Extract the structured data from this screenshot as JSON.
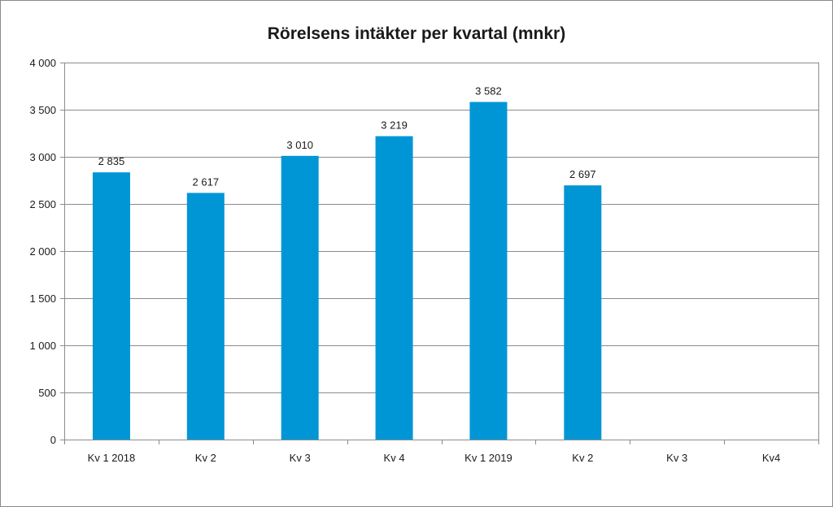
{
  "chart_data": {
    "type": "bar",
    "title": "Rörelsens intäkter per kvartal (mnkr)",
    "categories": [
      "Kv 1 2018",
      "Kv 2",
      "Kv 3",
      "Kv 4",
      "Kv 1 2019",
      "Kv 2",
      "Kv 3",
      "Kv4"
    ],
    "values": [
      2835,
      2617,
      3010,
      3219,
      3582,
      2697,
      null,
      null
    ],
    "data_labels": [
      "2 835",
      "2 617",
      "3 010",
      "3 219",
      "3 582",
      "2 697",
      "",
      ""
    ],
    "y_ticks": [
      0,
      500,
      1000,
      1500,
      2000,
      2500,
      3000,
      3500,
      4000
    ],
    "y_tick_labels": [
      "0",
      "500",
      "1 000",
      "1 500",
      "2 000",
      "2 500",
      "3 000",
      "3 500",
      "4 000"
    ],
    "ylim": [
      0,
      4000
    ],
    "grid": true,
    "legend": "none",
    "bar_color": "#0096d6",
    "grid_color": "#8c8c8c"
  }
}
